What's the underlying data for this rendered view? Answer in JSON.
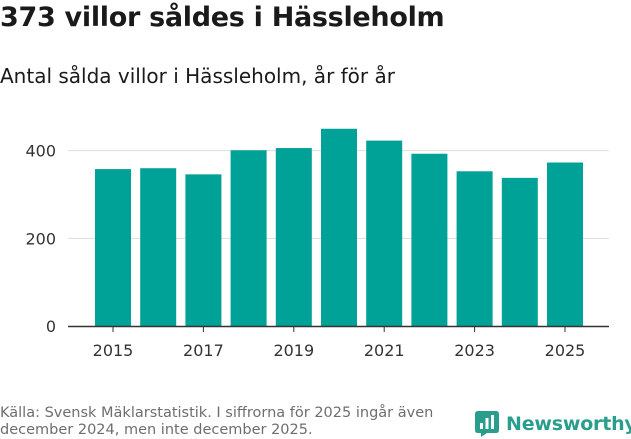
{
  "title": "373 villor såldes i Hässleholm",
  "subtitle": "Antal sålda villor i Hässleholm, år för år",
  "source": "Källa: Svensk Mäklarstatistik. I siffrorna för 2025 ingår även december 2024, men inte december 2025.",
  "brand": {
    "name": "Newsworthy",
    "color": "#2a9e8c"
  },
  "colors": {
    "bar": "#00a197",
    "grid": "#dddddd",
    "axis": "#333333"
  },
  "chart_data": {
    "type": "bar",
    "title": "Antal sålda villor i Hässleholm, år för år",
    "xlabel": "",
    "ylabel": "",
    "categories": [
      "2015",
      "2016",
      "2017",
      "2018",
      "2019",
      "2020",
      "2021",
      "2022",
      "2023",
      "2024",
      "2025"
    ],
    "values": [
      358,
      360,
      346,
      401,
      406,
      450,
      423,
      393,
      353,
      338,
      373
    ],
    "ylim": [
      0,
      470
    ],
    "yticks": [
      0,
      200,
      400
    ],
    "ytick_labels": [
      "0",
      "200",
      "400"
    ],
    "xticks": [
      "2015",
      "2017",
      "2019",
      "2021",
      "2023",
      "2025"
    ],
    "grid": true,
    "legend": "none"
  }
}
